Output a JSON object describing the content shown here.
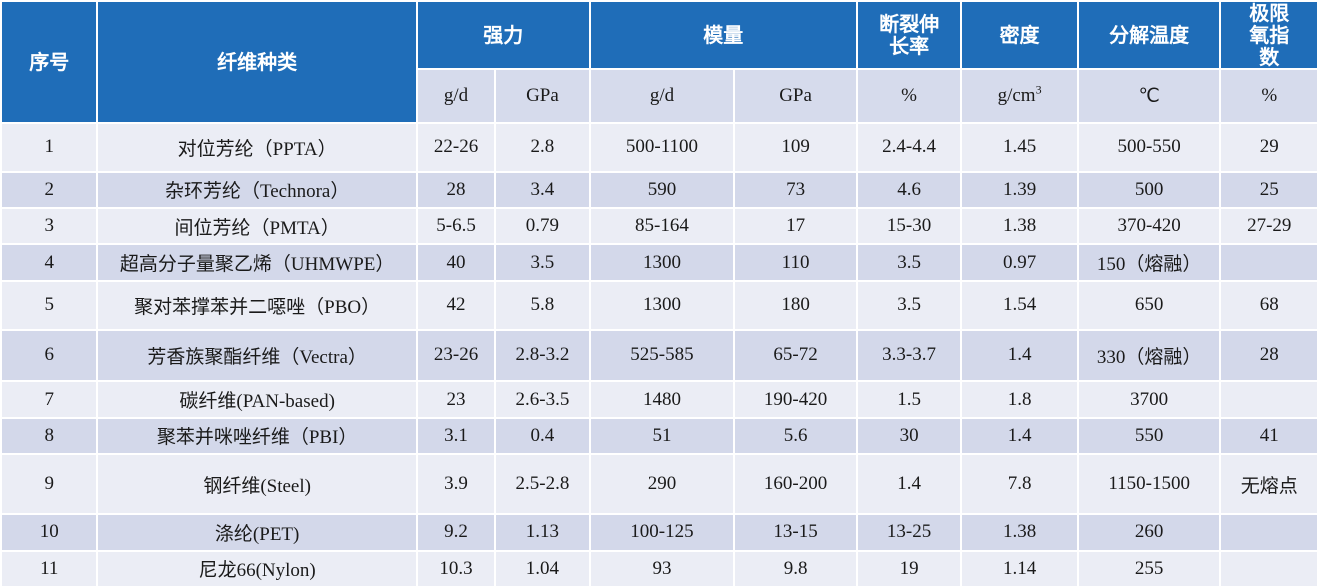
{
  "header": {
    "index": "序号",
    "fiber_type": "纤维种类",
    "strength": "强力",
    "modulus": "模量",
    "elongation": "断裂伸长率",
    "density": "密度",
    "decomp_temp": "分解温度",
    "loi": "极限氧指数"
  },
  "units": {
    "strength_gd": "g/d",
    "strength_gpa": "GPa",
    "modulus_gd": "g/d",
    "modulus_gpa": "GPa",
    "elongation": "%",
    "density_base": "g/cm",
    "density_exp": "3",
    "decomp_temp": "℃",
    "loi": "%"
  },
  "rows": [
    {
      "no": "1",
      "fiber": "对位芳纶（PPTA）",
      "s_gd": "22-26",
      "s_gpa": "2.8",
      "m_gd": "500-1100",
      "m_gpa": "109",
      "elong": "2.4-4.4",
      "dens": "1.45",
      "temp": "500-550",
      "loi": "29"
    },
    {
      "no": "2",
      "fiber": "杂环芳纶（Technora）",
      "s_gd": "28",
      "s_gpa": "3.4",
      "m_gd": "590",
      "m_gpa": "73",
      "elong": "4.6",
      "dens": "1.39",
      "temp": "500",
      "loi": "25"
    },
    {
      "no": "3",
      "fiber": "间位芳纶（PMTA）",
      "s_gd": "5-6.5",
      "s_gpa": "0.79",
      "m_gd": "85-164",
      "m_gpa": "17",
      "elong": "15-30",
      "dens": "1.38",
      "temp": "370-420",
      "loi": "27-29"
    },
    {
      "no": "4",
      "fiber": "超高分子量聚乙烯（UHMWPE）",
      "s_gd": "40",
      "s_gpa": "3.5",
      "m_gd": "1300",
      "m_gpa": "110",
      "elong": "3.5",
      "dens": "0.97",
      "temp": "150（熔融）",
      "loi": ""
    },
    {
      "no": "5",
      "fiber": "聚对苯撑苯并二噁唑（PBO）",
      "s_gd": "42",
      "s_gpa": "5.8",
      "m_gd": "1300",
      "m_gpa": "180",
      "elong": "3.5",
      "dens": "1.54",
      "temp": "650",
      "loi": "68"
    },
    {
      "no": "6",
      "fiber": "芳香族聚酯纤维（Vectra）",
      "s_gd": "23-26",
      "s_gpa": "2.8-3.2",
      "m_gd": "525-585",
      "m_gpa": "65-72",
      "elong": "3.3-3.7",
      "dens": "1.4",
      "temp": "330（熔融）",
      "loi": "28"
    },
    {
      "no": "7",
      "fiber": "碳纤维(PAN-based)",
      "s_gd": "23",
      "s_gpa": "2.6-3.5",
      "m_gd": "1480",
      "m_gpa": "190-420",
      "elong": "1.5",
      "dens": "1.8",
      "temp": "3700",
      "loi": ""
    },
    {
      "no": "8",
      "fiber": "聚苯并咪唑纤维（PBI）",
      "s_gd": "3.1",
      "s_gpa": "0.4",
      "m_gd": "51",
      "m_gpa": "5.6",
      "elong": "30",
      "dens": "1.4",
      "temp": "550",
      "loi": "41"
    },
    {
      "no": "9",
      "fiber": "钢纤维(Steel)",
      "s_gd": "3.9",
      "s_gpa": "2.5-2.8",
      "m_gd": "290",
      "m_gpa": "160-200",
      "elong": "1.4",
      "dens": "7.8",
      "temp": "1150-1500",
      "loi": "无熔点"
    },
    {
      "no": "10",
      "fiber": "涤纶(PET)",
      "s_gd": "9.2",
      "s_gpa": "1.13",
      "m_gd": "100-125",
      "m_gpa": "13-15",
      "elong": "13-25",
      "dens": "1.38",
      "temp": "260",
      "loi": ""
    },
    {
      "no": "11",
      "fiber": "尼龙66(Nylon)",
      "s_gd": "10.3",
      "s_gpa": "1.04",
      "m_gd": "93",
      "m_gpa": "9.8",
      "elong": "19",
      "dens": "1.14",
      "temp": "255",
      "loi": ""
    }
  ]
}
